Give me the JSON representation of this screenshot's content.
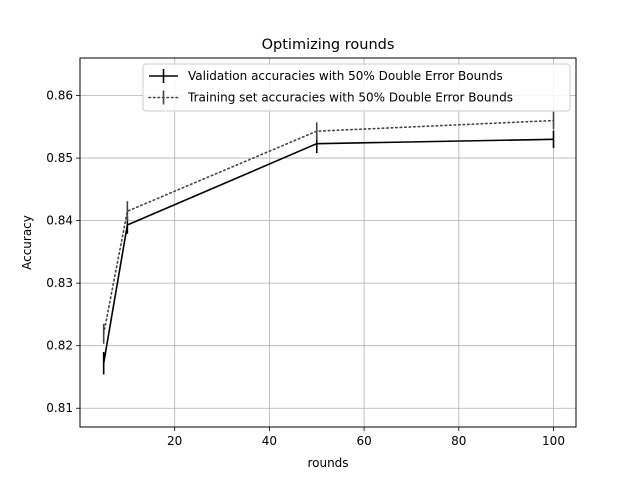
{
  "chart_data": {
    "type": "line",
    "title": "Optimizing rounds",
    "xlabel": "rounds",
    "ylabel": "Accuracy",
    "xlim": [
      0,
      104.75
    ],
    "ylim": [
      0.807,
      0.866
    ],
    "xticks": [
      20,
      40,
      60,
      80,
      100
    ],
    "yticks": [
      0.81,
      0.82,
      0.83,
      0.84,
      0.85,
      0.86
    ],
    "grid": true,
    "legend_position": "top-right",
    "series": [
      {
        "name": "Validation accuracies with 50% Double Error Bounds",
        "style": "solid",
        "color": "#000000",
        "x": [
          5,
          10,
          50,
          100
        ],
        "y": [
          0.8172,
          0.8393,
          0.8523,
          0.853
        ],
        "err": [
          0.0018,
          0.0014,
          0.0015,
          0.0014
        ]
      },
      {
        "name": "Training set accuracies with 50% Double Error Bounds",
        "style": "dotted",
        "color": "#444444",
        "x": [
          5,
          10,
          50,
          100
        ],
        "y": [
          0.8219,
          0.8415,
          0.8543,
          0.856
        ],
        "err": [
          0.0016,
          0.0016,
          0.0014,
          0.0014
        ]
      }
    ]
  }
}
